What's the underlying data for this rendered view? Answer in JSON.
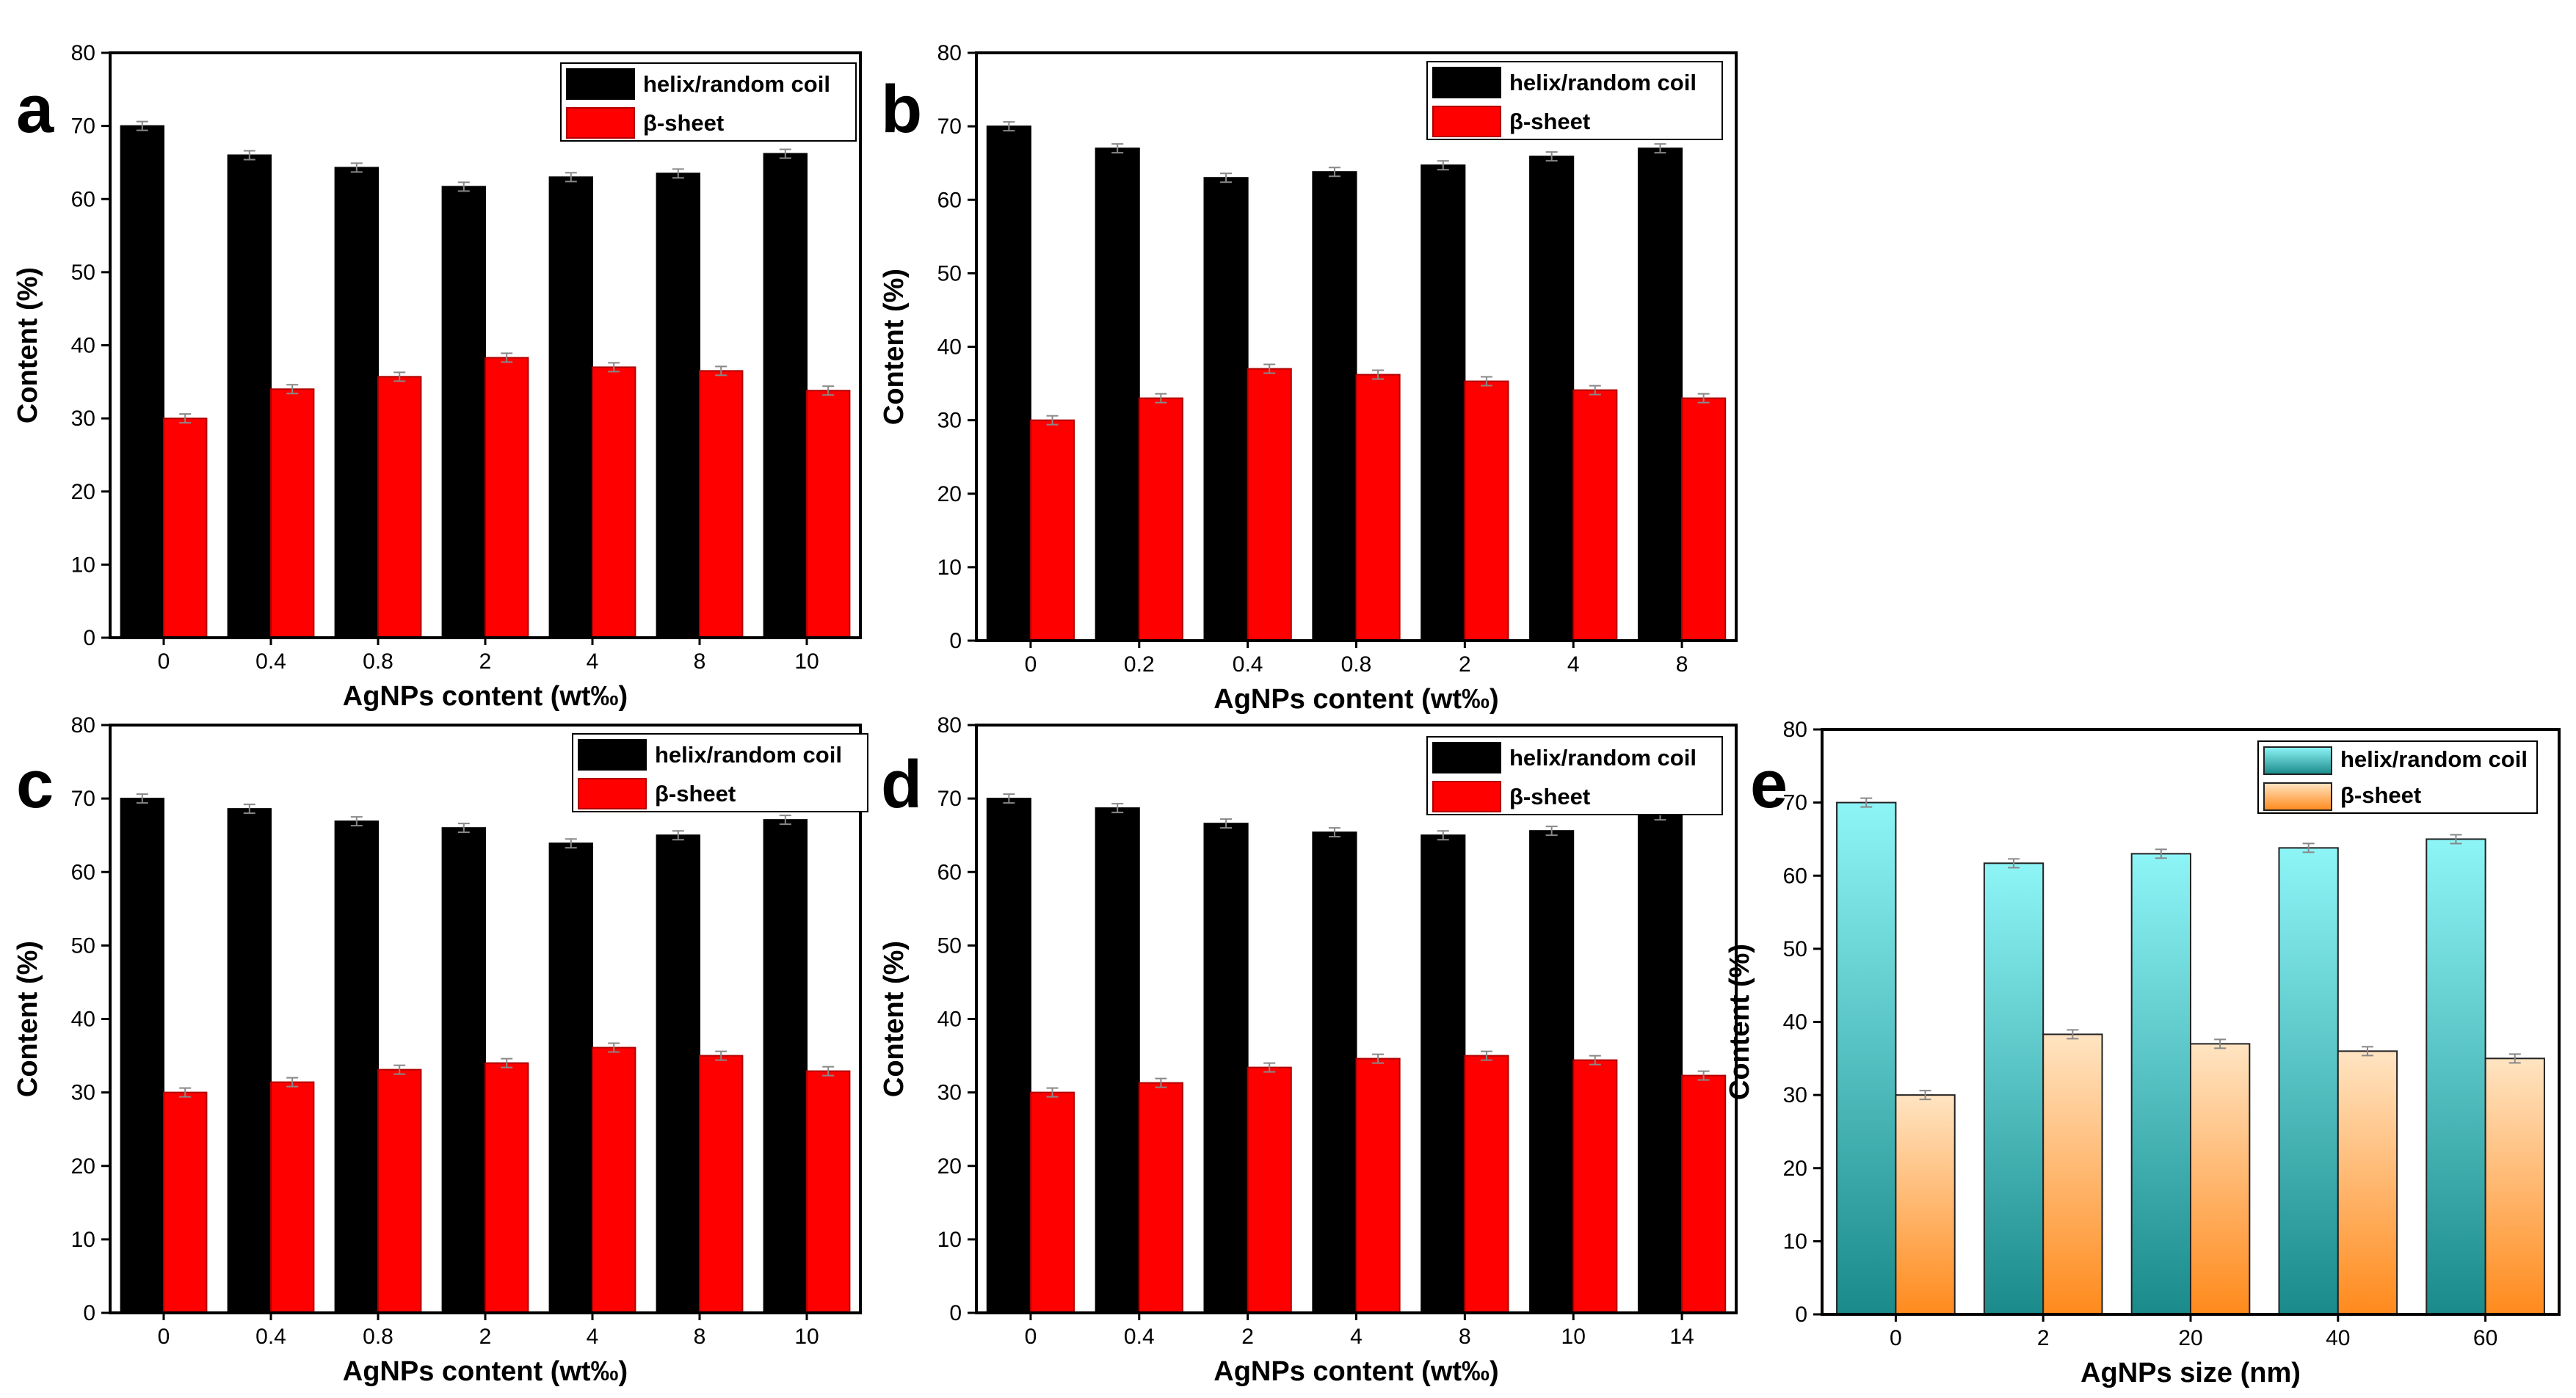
{
  "chart_data": [
    {
      "panel_letter": "a",
      "type": "bar",
      "xlabel": "AgNPs content (wt‰)",
      "ylabel": "Content (%)",
      "ylim": [
        0,
        80
      ],
      "yticks": [
        "0",
        "10",
        "20",
        "30",
        "40",
        "50",
        "60",
        "70",
        "80"
      ],
      "categories": [
        "0",
        "0.4",
        "0.8",
        "2",
        "4",
        "8",
        "10"
      ],
      "legend_position": "top-right",
      "series": [
        {
          "name": "helix/random coil",
          "values": [
            70,
            66,
            64.3,
            61.7,
            63,
            63.5,
            66.2
          ]
        },
        {
          "name": "β-sheet",
          "values": [
            30,
            34,
            35.7,
            38.3,
            37,
            36.5,
            33.8
          ]
        }
      ]
    },
    {
      "panel_letter": "b",
      "type": "bar",
      "xlabel": "AgNPs content (wt‰)",
      "ylabel": "Content (%)",
      "ylim": [
        0,
        80
      ],
      "yticks": [
        "0",
        "10",
        "20",
        "30",
        "40",
        "50",
        "60",
        "70",
        "80"
      ],
      "categories": [
        "0",
        "0.2",
        "0.4",
        "0.8",
        "2",
        "4",
        "8"
      ],
      "legend_position": "top-right",
      "series": [
        {
          "name": "helix/random coil",
          "values": [
            70,
            67,
            63,
            63.8,
            64.7,
            65.9,
            67
          ]
        },
        {
          "name": "β-sheet",
          "values": [
            30,
            33,
            37,
            36.2,
            35.3,
            34.1,
            33
          ]
        }
      ]
    },
    {
      "panel_letter": "c",
      "type": "bar",
      "xlabel": "AgNPs content (wt‰)",
      "ylabel": "Content (%)",
      "ylim": [
        0,
        80
      ],
      "yticks": [
        "0",
        "10",
        "20",
        "30",
        "40",
        "50",
        "60",
        "70",
        "80"
      ],
      "categories": [
        "0",
        "0.4",
        "0.8",
        "2",
        "4",
        "8",
        "10"
      ],
      "legend_position": "top-right",
      "series": [
        {
          "name": "helix/random coil",
          "values": [
            70,
            68.6,
            66.9,
            66,
            63.9,
            65,
            67.1
          ]
        },
        {
          "name": "β-sheet",
          "values": [
            30,
            31.4,
            33.1,
            34,
            36.1,
            35,
            32.9
          ]
        }
      ]
    },
    {
      "panel_letter": "d",
      "type": "bar",
      "xlabel": "AgNPs content (wt‰)",
      "ylabel": "Content (%)",
      "ylim": [
        0,
        80
      ],
      "yticks": [
        "0",
        "10",
        "20",
        "30",
        "40",
        "50",
        "60",
        "70",
        "80"
      ],
      "categories": [
        "0",
        "0.4",
        "2",
        "4",
        "8",
        "10",
        "14"
      ],
      "legend_position": "top-right",
      "series": [
        {
          "name": "helix/random coil",
          "values": [
            70,
            68.7,
            66.6,
            65.4,
            65,
            65.6,
            67.7
          ]
        },
        {
          "name": "β-sheet",
          "values": [
            30,
            31.3,
            33.4,
            34.6,
            35,
            34.4,
            32.3
          ]
        }
      ]
    },
    {
      "panel_letter": "e",
      "type": "bar",
      "xlabel": "AgNPs size (nm)",
      "ylabel": "Content (%)",
      "ylim": [
        0,
        80
      ],
      "yticks": [
        "0",
        "10",
        "20",
        "30",
        "40",
        "50",
        "60",
        "70",
        "80"
      ],
      "categories": [
        "0",
        "2",
        "20",
        "40",
        "60"
      ],
      "legend_position": "top-right",
      "series": [
        {
          "name": "helix/random coil",
          "values": [
            70,
            61.7,
            63,
            63.8,
            65
          ]
        },
        {
          "name": "β-sheet",
          "values": [
            30,
            38.3,
            37,
            36,
            35
          ]
        }
      ]
    }
  ],
  "colors": {
    "helix": "#000000",
    "sheet": "#ff0000",
    "sheet_stroke": "#b00000",
    "errorbar": "#888888",
    "helix_gradient_top": "#8ef5f7",
    "helix_gradient_bottom": "#1a8a8a",
    "sheet_gradient_top": "#ffe4c2",
    "sheet_gradient_bottom": "#ff8a1c"
  }
}
